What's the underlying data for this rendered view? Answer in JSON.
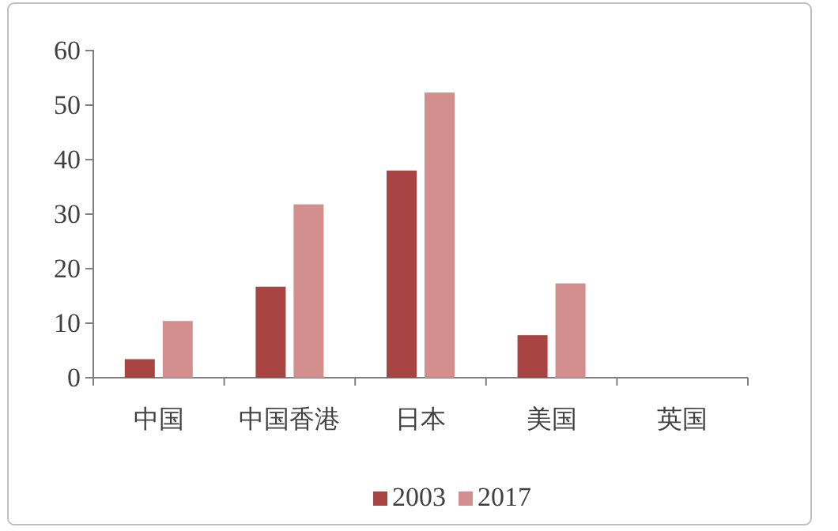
{
  "chart_data": {
    "type": "bar",
    "categories": [
      "中国",
      "中国香港",
      "日本",
      "美国",
      "英国"
    ],
    "series": [
      {
        "name": "2003",
        "color": "#a84442",
        "values": [
          3.4,
          16.7,
          38.0,
          7.8,
          0
        ]
      },
      {
        "name": "2017",
        "color": "#d38f8e",
        "values": [
          10.4,
          31.8,
          52.3,
          17.3,
          0
        ]
      }
    ],
    "ylim": [
      0,
      60
    ],
    "yticks": [
      0,
      10,
      20,
      30,
      40,
      50,
      60
    ],
    "grid": false,
    "legend": "bottom"
  }
}
